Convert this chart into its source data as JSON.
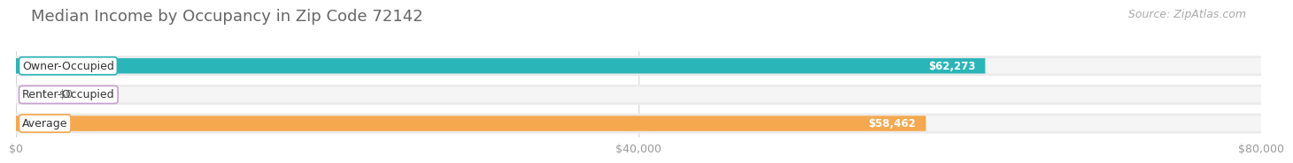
{
  "title": "Median Income by Occupancy in Zip Code 72142",
  "source": "Source: ZipAtlas.com",
  "categories": [
    "Owner-Occupied",
    "Renter-Occupied",
    "Average"
  ],
  "values": [
    62273,
    0,
    58462
  ],
  "bar_colors": [
    "#2ab5b8",
    "#c9a0d0",
    "#f5a84e"
  ],
  "value_labels": [
    "$62,273",
    "$0",
    "$58,462"
  ],
  "row_bg_color": "#ebebeb",
  "bar_bg_color": "#f5f5f5",
  "gap_color": "#ffffff",
  "xlim": [
    0,
    80000
  ],
  "xticks": [
    0,
    40000,
    80000
  ],
  "xticklabels": [
    "$0",
    "$40,000",
    "$80,000"
  ],
  "title_fontsize": 13,
  "source_fontsize": 9,
  "label_fontsize": 9,
  "value_fontsize": 8.5,
  "tick_fontsize": 9,
  "bar_height": 0.7,
  "background_color": "#ffffff"
}
